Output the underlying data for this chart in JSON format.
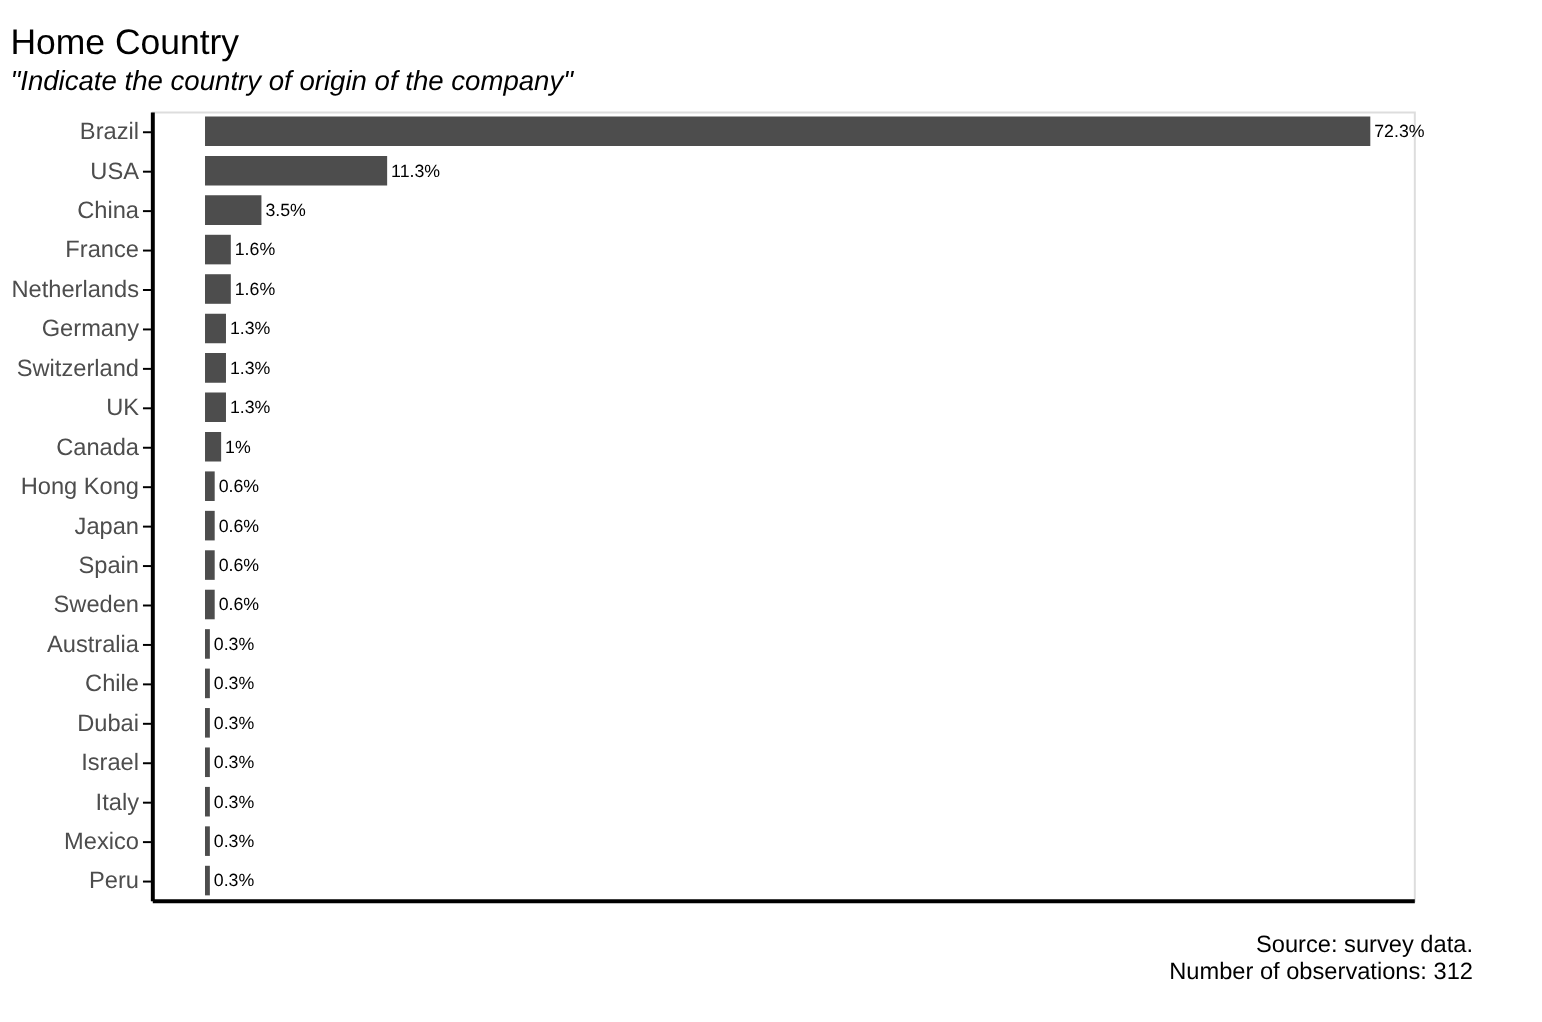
{
  "chart_data": {
    "type": "bar",
    "orientation": "horizontal",
    "title": "Home Country",
    "subtitle": "\"Indicate the country of origin of the company\"",
    "categories": [
      "Brazil",
      "USA",
      "China",
      "France",
      "Netherlands",
      "Germany",
      "Switzerland",
      "UK",
      "Canada",
      "Hong Kong",
      "Japan",
      "Spain",
      "Sweden",
      "Australia",
      "Chile",
      "Dubai",
      "Israel",
      "Italy",
      "Mexico",
      "Peru"
    ],
    "values": [
      72.3,
      11.3,
      3.5,
      1.6,
      1.6,
      1.3,
      1.3,
      1.3,
      1,
      0.6,
      0.6,
      0.6,
      0.6,
      0.3,
      0.3,
      0.3,
      0.3,
      0.3,
      0.3,
      0.3
    ],
    "value_labels": [
      "72.3%",
      "11.3%",
      "3.5%",
      "1.6%",
      "1.6%",
      "1.3%",
      "1.3%",
      "1.3%",
      "1%",
      "0.6%",
      "0.6%",
      "0.6%",
      "0.6%",
      "0.3%",
      "0.3%",
      "0.3%",
      "0.3%",
      "0.3%",
      "0.3%",
      "0.3%"
    ],
    "color": "#4d4d4d",
    "xlim": [
      -3.3,
      75
    ],
    "tick_labels": "y",
    "grid": false,
    "annotations": [
      "Source: survey data.",
      "Number of observations: 312"
    ]
  }
}
